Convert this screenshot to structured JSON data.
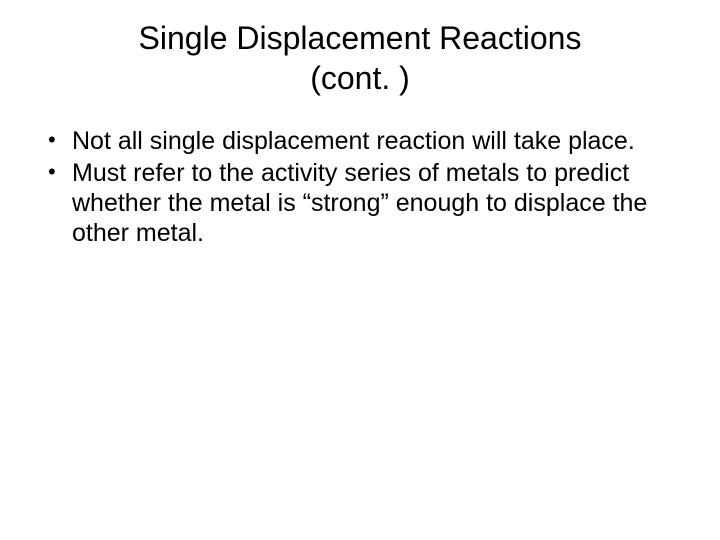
{
  "slide": {
    "background_color": "#ffffff",
    "text_color": "#000000",
    "font_family": "Arial",
    "title": {
      "line1": "Single Displacement Reactions",
      "line2": "(cont. )",
      "font_size_pt": 32,
      "align": "center"
    },
    "bullets": [
      {
        "text": "Not all single displacement reaction will take place."
      },
      {
        "text": "Must refer to the activity series of metals to predict whether the metal is “strong” enough to displace the other metal."
      }
    ],
    "bullet_font_size_pt": 25,
    "bullet_marker": "•"
  }
}
